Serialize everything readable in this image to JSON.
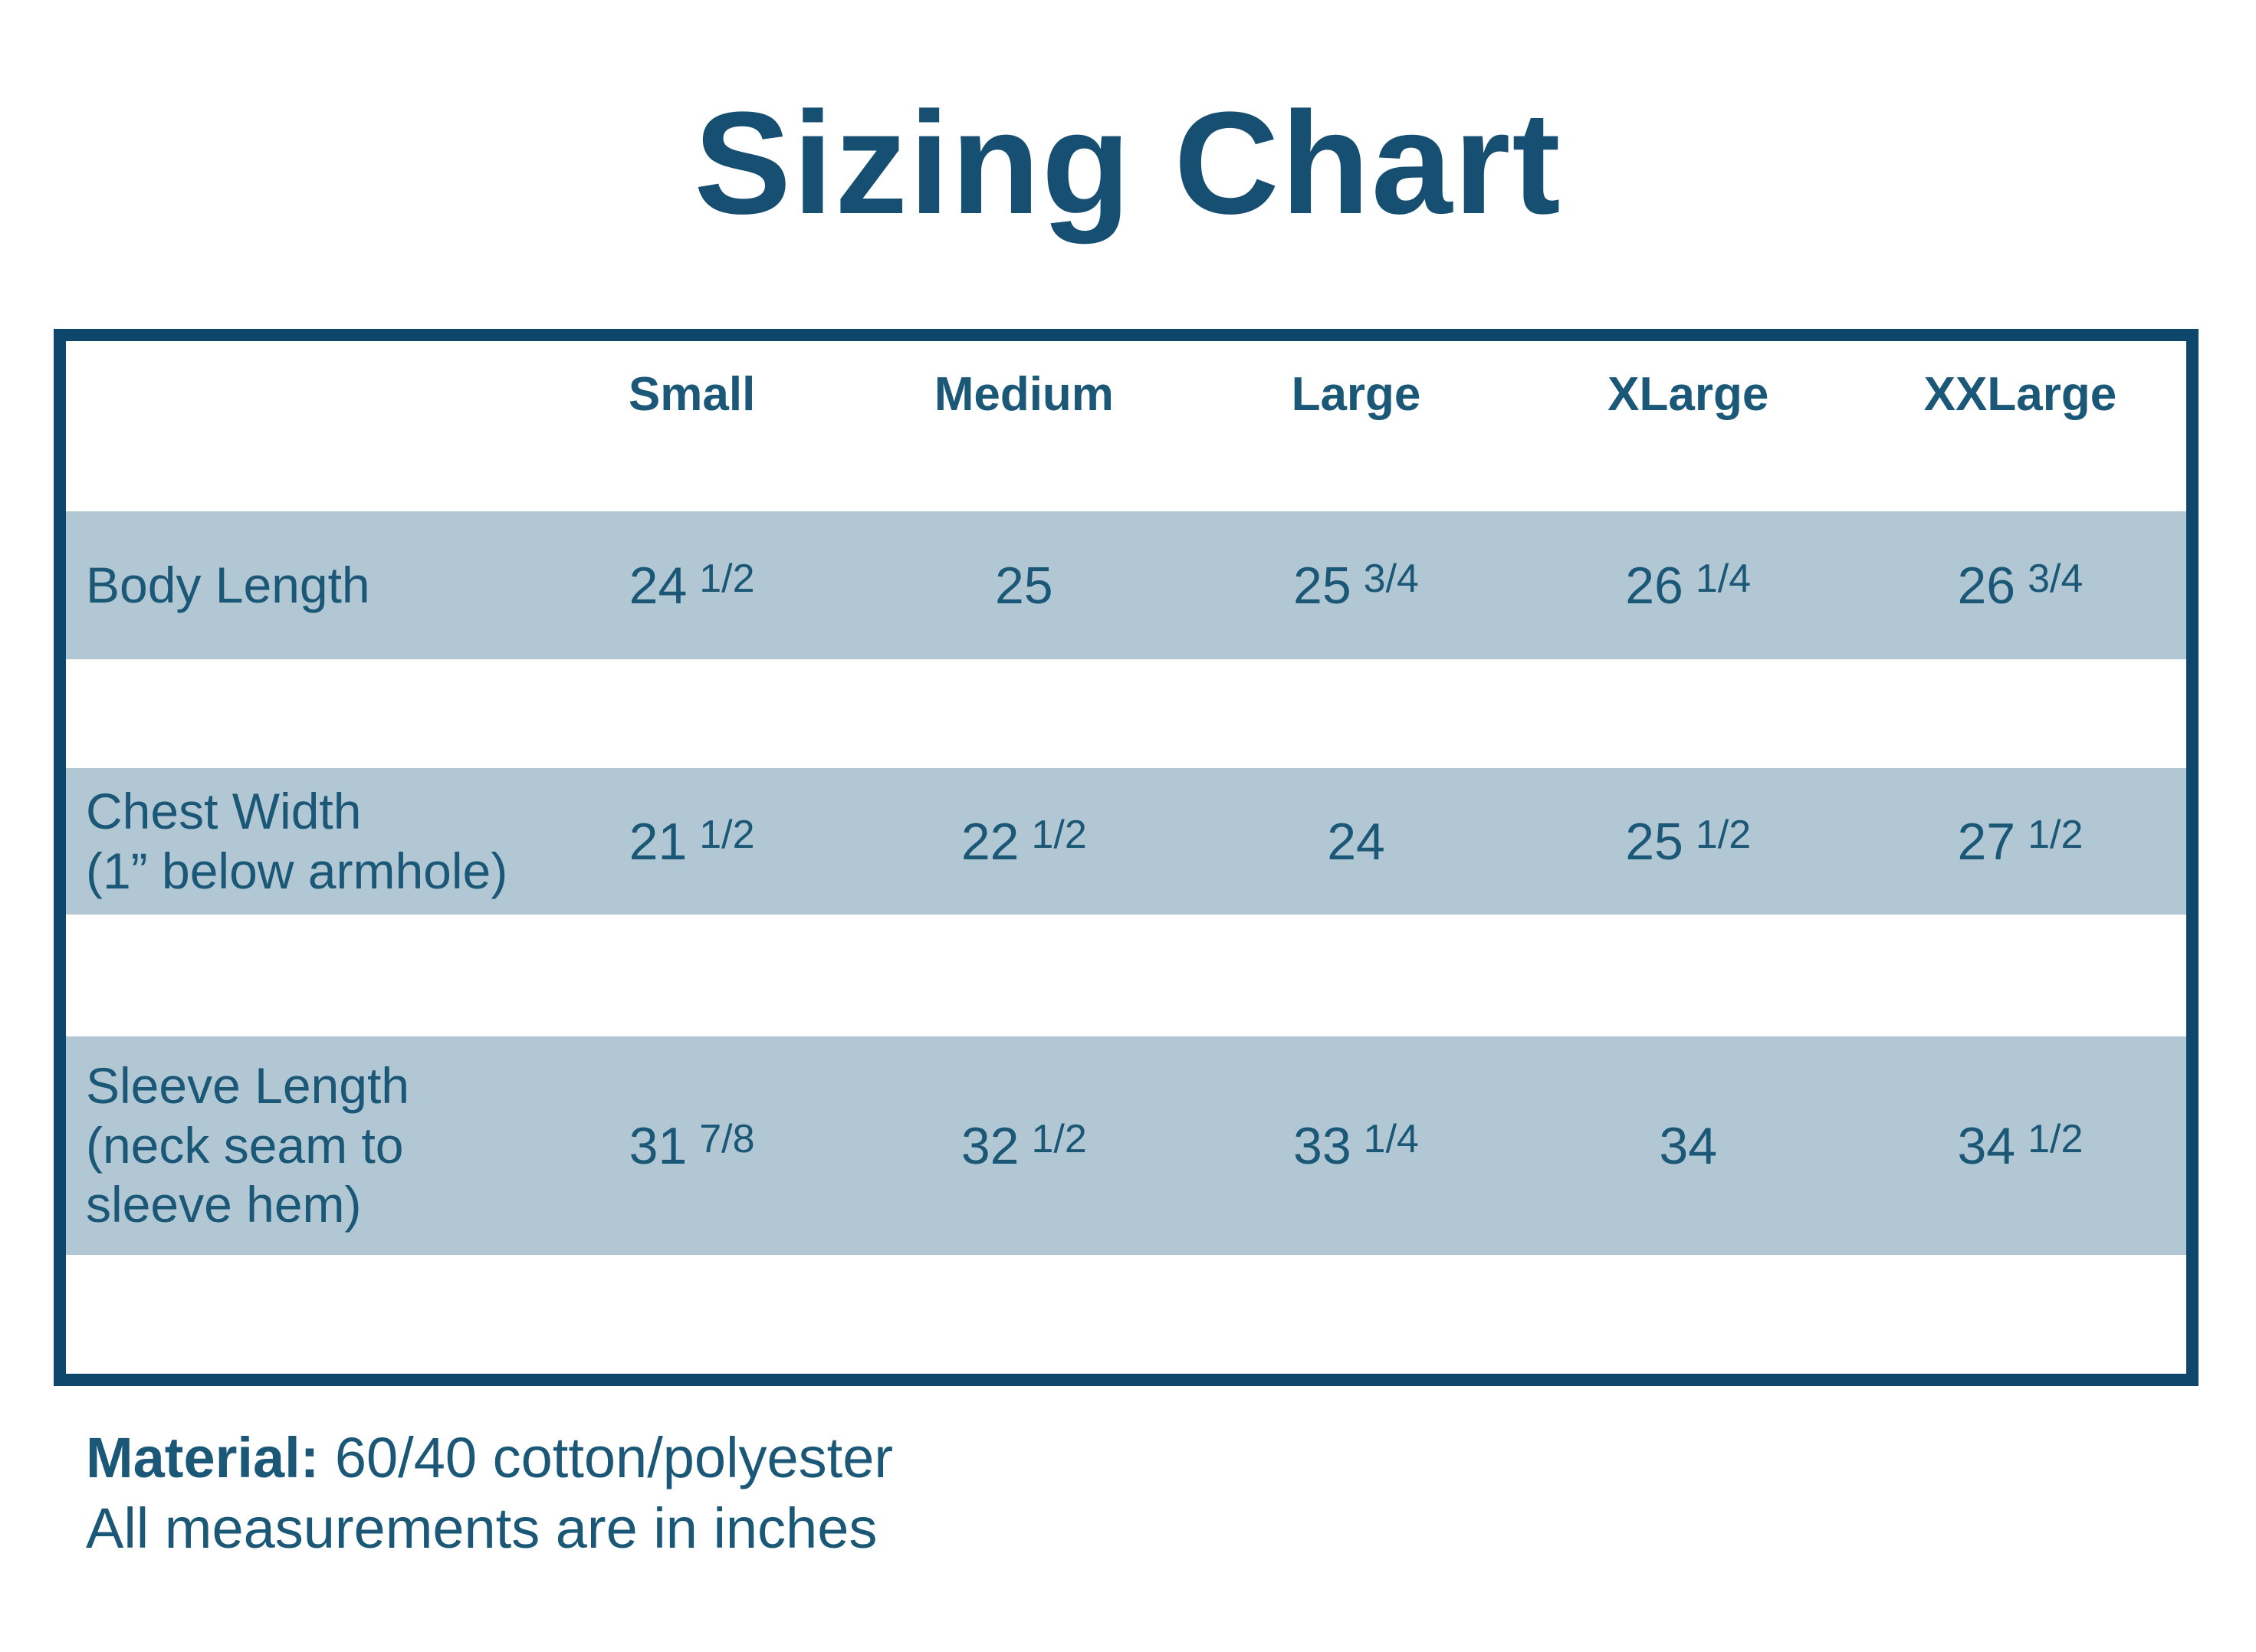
{
  "title": "Sizing Chart",
  "colors": {
    "text": "#1b5776",
    "border": "#0f476c",
    "band": "#b1c7d3",
    "background": "#ffffff"
  },
  "table": {
    "columns": [
      "Small",
      "Medium",
      "Large",
      "XLarge",
      "XXLarge"
    ],
    "rows": [
      {
        "label_lines": [
          "Body Length",
          "",
          ""
        ],
        "cells": [
          {
            "int": "24",
            "frac": "1/2"
          },
          {
            "int": "25",
            "frac": ""
          },
          {
            "int": "25",
            "frac": "3/4"
          },
          {
            "int": "26",
            "frac": "1/4"
          },
          {
            "int": "26",
            "frac": "3/4"
          }
        ]
      },
      {
        "label_lines": [
          "Chest Width",
          "(1” below armhole)",
          ""
        ],
        "cells": [
          {
            "int": "21",
            "frac": "1/2"
          },
          {
            "int": "22",
            "frac": "1/2"
          },
          {
            "int": "24",
            "frac": ""
          },
          {
            "int": "25",
            "frac": "1/2"
          },
          {
            "int": "27",
            "frac": "1/2"
          }
        ]
      },
      {
        "label_lines": [
          "Sleeve Length",
          "(neck seam to",
          "sleeve hem)"
        ],
        "cells": [
          {
            "int": "31",
            "frac": "7/8"
          },
          {
            "int": "32",
            "frac": "1/2"
          },
          {
            "int": "33",
            "frac": "1/4"
          },
          {
            "int": "34",
            "frac": ""
          },
          {
            "int": "34",
            "frac": "1/2"
          }
        ]
      }
    ]
  },
  "footer": {
    "material_label": "Material:",
    "material_value": "60/40 cotton/polyester",
    "note": "All measurements are in inches"
  },
  "chart_data": {
    "type": "table",
    "title": "Sizing Chart",
    "columns": [
      "Small",
      "Medium",
      "Large",
      "XLarge",
      "XXLarge"
    ],
    "rows": [
      {
        "label": "Body Length",
        "values": [
          24.5,
          25,
          25.75,
          26.25,
          26.75
        ],
        "display": [
          "24 1/2",
          "25",
          "25 3/4",
          "26 1/4",
          "26 3/4"
        ]
      },
      {
        "label": "Chest Width (1” below armhole)",
        "values": [
          21.5,
          22.5,
          24,
          25.5,
          27.5
        ],
        "display": [
          "21 1/2",
          "22 1/2",
          "24",
          "25 1/2",
          "27 1/2"
        ]
      },
      {
        "label": "Sleeve Length (neck seam to sleeve hem)",
        "values": [
          31.875,
          32.5,
          33.25,
          34,
          34.5
        ],
        "display": [
          "31 7/8",
          "32 1/2",
          "33 1/4",
          "34",
          "34 1/2"
        ]
      }
    ],
    "notes": [
      "Material: 60/40 cotton/polyester",
      "All measurements are in inches"
    ],
    "units": "inches"
  }
}
